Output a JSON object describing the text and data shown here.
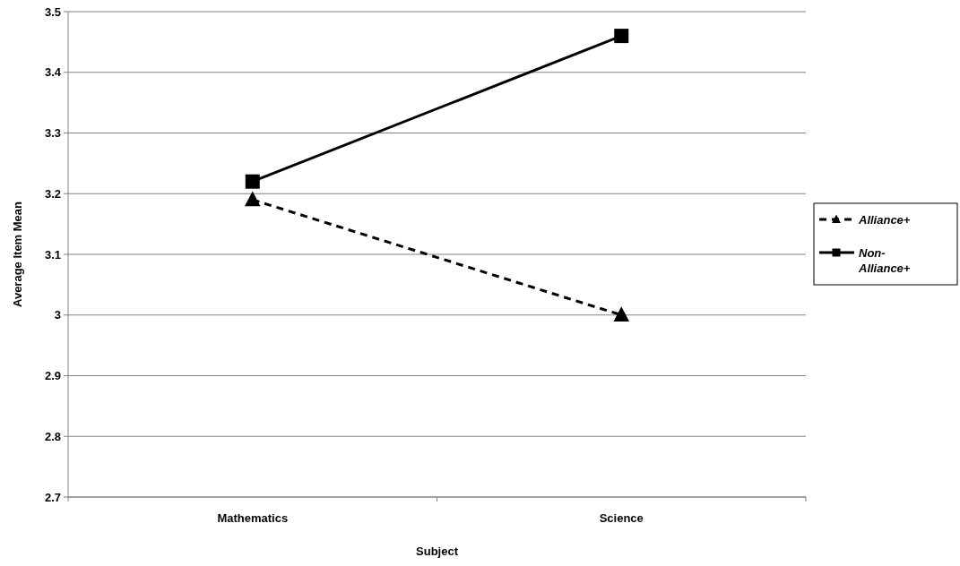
{
  "chart_data": {
    "type": "line",
    "xlabel": "Subject",
    "ylabel": "Average Item Mean",
    "categories": [
      "Mathematics",
      "Science"
    ],
    "series": [
      {
        "name": "Alliance+",
        "color": "#000000",
        "values": [
          3.19,
          3.0
        ],
        "marker": "triangle",
        "line_style": "dashed"
      },
      {
        "name": "Non-Alliance+",
        "color": "#000000",
        "values": [
          3.22,
          3.46
        ],
        "marker": "square",
        "line_style": "solid"
      }
    ],
    "ylim": [
      2.7,
      3.5
    ],
    "yticks": [
      2.7,
      2.8,
      2.9,
      3,
      3.1,
      3.2,
      3.3,
      3.4,
      3.5
    ],
    "grid": "y",
    "legend": "right"
  }
}
